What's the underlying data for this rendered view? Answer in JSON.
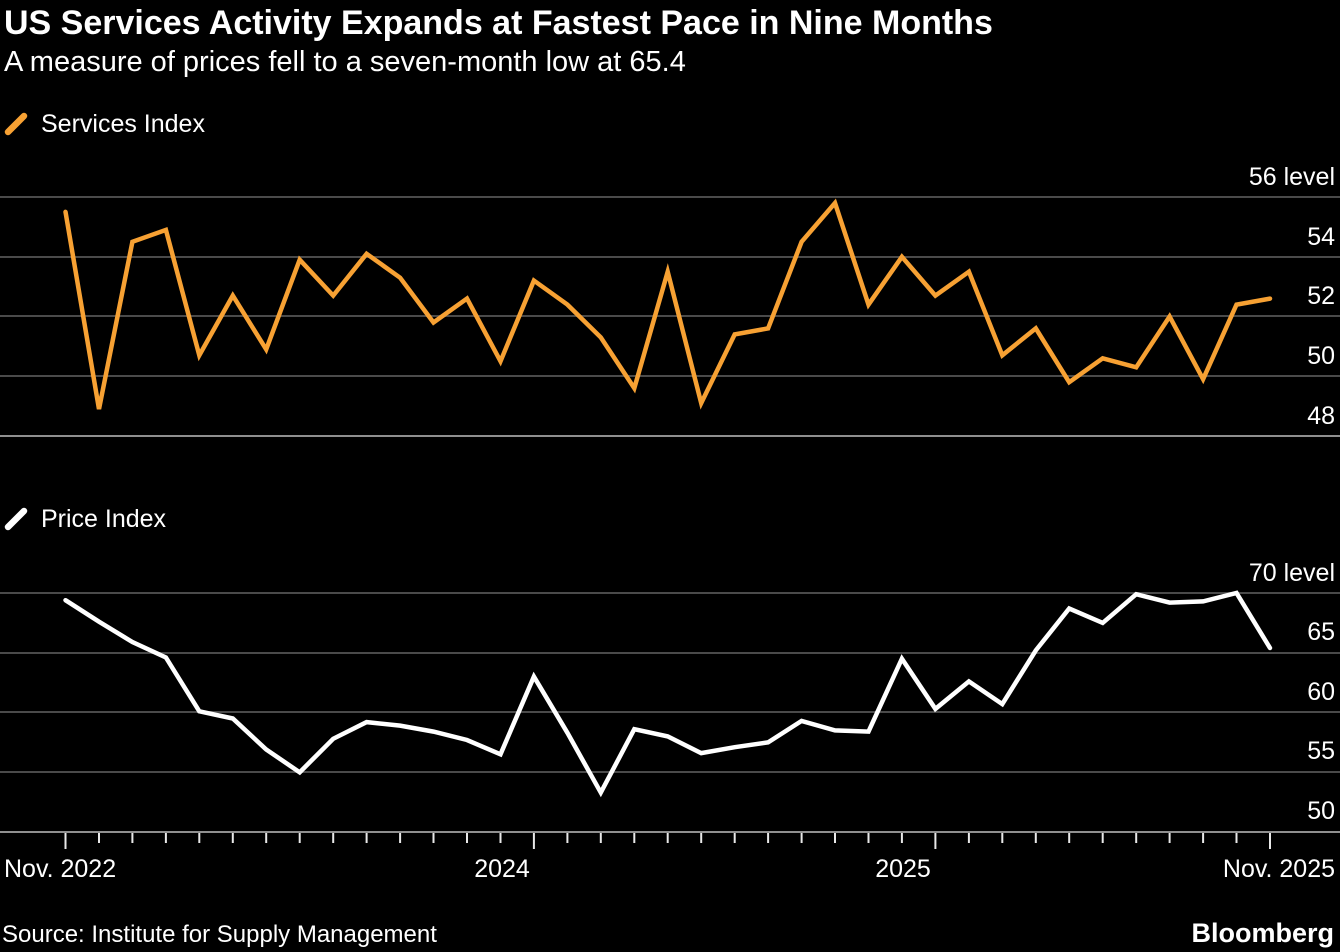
{
  "header": {
    "title": "US Services Activity Expands at Fastest Pace in Nine Months",
    "subtitle": "A measure of prices fell to a seven-month low at 65.4"
  },
  "colors": {
    "background": "#000000",
    "services_line": "#F7A133",
    "price_line": "#FFFFFF",
    "gridline": "#4A4A4A",
    "axis_line": "#8F8F8F",
    "tick": "#E8E8E8",
    "text": "#FFFFFF"
  },
  "footer": {
    "source": "Source: Institute for Supply Management",
    "brand": "Bloomberg"
  },
  "chart_data": [
    {
      "type": "line",
      "title": "Services Index",
      "legend_position": "top-left",
      "grid": true,
      "ylim": [
        48,
        56
      ],
      "ygrid_values": [
        56,
        54,
        52,
        50,
        48
      ],
      "ytick_labels": [
        "56 level",
        "54",
        "52",
        "50",
        "48"
      ],
      "x": [
        "Nov 2022",
        "Dec 2022",
        "Jan 2023",
        "Feb 2023",
        "Mar 2023",
        "Apr 2023",
        "May 2023",
        "Jun 2023",
        "Jul 2023",
        "Aug 2023",
        "Sep 2023",
        "Oct 2023",
        "Nov 2023",
        "Dec 2023",
        "Jan 2024",
        "Feb 2024",
        "Mar 2024",
        "Apr 2024",
        "May 2024",
        "Jun 2024",
        "Jul 2024",
        "Aug 2024",
        "Sep 2024",
        "Oct 2024",
        "Nov 2024",
        "Dec 2024",
        "Jan 2025",
        "Feb 2025",
        "Mar 2025",
        "Apr 2025",
        "May 2025",
        "Jun 2025",
        "Jul 2025",
        "Aug 2025",
        "Sep 2025",
        "Oct 2025",
        "Nov 2025"
      ],
      "series": [
        {
          "name": "Services Index",
          "color": "#F7A133",
          "values": [
            55.5,
            48.9,
            54.5,
            54.9,
            50.7,
            52.7,
            50.9,
            53.9,
            52.7,
            54.1,
            53.3,
            51.8,
            52.6,
            50.5,
            53.2,
            52.4,
            51.3,
            49.6,
            53.5,
            49.1,
            51.4,
            51.6,
            54.5,
            55.8,
            52.4,
            54.0,
            52.7,
            53.5,
            50.7,
            51.6,
            49.8,
            50.6,
            50.3,
            52.0,
            49.9,
            52.4,
            52.6
          ]
        }
      ]
    },
    {
      "type": "line",
      "title": "Price Index",
      "legend_position": "top-left",
      "grid": true,
      "ylim": [
        50,
        70
      ],
      "ygrid_values": [
        70,
        65,
        60,
        55,
        50
      ],
      "ytick_labels": [
        "70 level",
        "65",
        "60",
        "55",
        "50"
      ],
      "xtick_labels": [
        "Nov. 2022",
        "2024",
        "2025",
        "Nov. 2025"
      ],
      "xtick_major_indices": [
        0,
        14,
        26,
        36
      ],
      "x": [
        "Nov 2022",
        "Dec 2022",
        "Jan 2023",
        "Feb 2023",
        "Mar 2023",
        "Apr 2023",
        "May 2023",
        "Jun 2023",
        "Jul 2023",
        "Aug 2023",
        "Sep 2023",
        "Oct 2023",
        "Nov 2023",
        "Dec 2023",
        "Jan 2024",
        "Feb 2024",
        "Mar 2024",
        "Apr 2024",
        "May 2024",
        "Jun 2024",
        "Jul 2024",
        "Aug 2024",
        "Sep 2024",
        "Oct 2024",
        "Nov 2024",
        "Dec 2024",
        "Jan 2025",
        "Feb 2025",
        "Mar 2025",
        "Apr 2025",
        "May 2025",
        "Jun 2025",
        "Jul 2025",
        "Aug 2025",
        "Sep 2025",
        "Oct 2025",
        "Nov 2025"
      ],
      "series": [
        {
          "name": "Price Index",
          "color": "#FFFFFF",
          "values": [
            69.4,
            67.6,
            65.9,
            64.6,
            60.1,
            59.5,
            56.9,
            55.0,
            57.8,
            59.2,
            58.9,
            58.4,
            57.7,
            56.5,
            63.0,
            58.3,
            53.3,
            58.6,
            58.0,
            56.6,
            57.1,
            57.5,
            59.3,
            58.5,
            58.4,
            64.5,
            60.3,
            62.6,
            60.7,
            65.2,
            68.7,
            67.5,
            69.9,
            69.2,
            69.3,
            70.0,
            65.4
          ]
        }
      ]
    }
  ]
}
